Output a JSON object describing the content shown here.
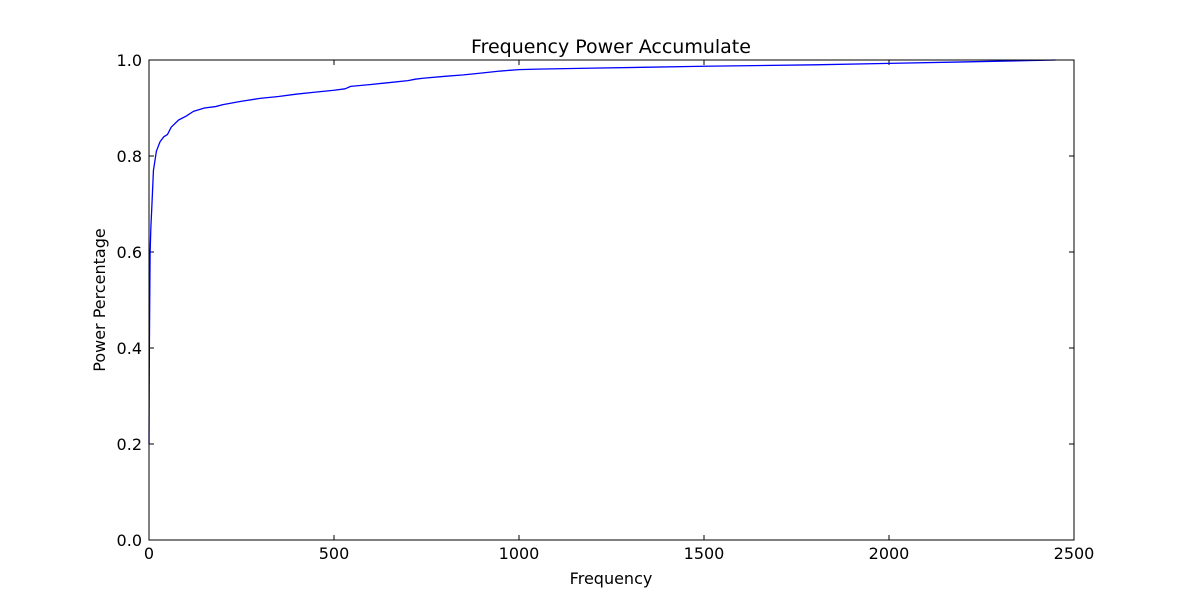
{
  "chart_data": {
    "type": "line",
    "title": "Frequency Power Accumulate",
    "xlabel": "Frequency",
    "ylabel": "Power Percentage",
    "xlim": [
      0,
      2500
    ],
    "ylim": [
      0.0,
      1.0
    ],
    "xticks": [
      0,
      500,
      1000,
      1500,
      2000,
      2500
    ],
    "xtick_labels": [
      "0",
      "500",
      "1000",
      "1500",
      "2000",
      "2500"
    ],
    "yticks": [
      0.0,
      0.2,
      0.4,
      0.6,
      0.8,
      1.0
    ],
    "ytick_labels": [
      "0.0",
      "0.2",
      "0.4",
      "0.6",
      "0.8",
      "1.0"
    ],
    "grid": false,
    "line_color": "#0000ff",
    "series": [
      {
        "x": [
          0,
          1,
          3,
          5,
          8,
          12,
          16,
          20,
          25,
          30,
          40,
          50,
          60,
          80,
          100,
          120,
          150,
          180,
          200,
          250,
          300,
          350,
          400,
          450,
          500,
          530,
          545,
          600,
          650,
          700,
          720,
          740,
          800,
          850,
          900,
          950,
          1000,
          1050,
          1200,
          1500,
          1800,
          2000,
          2200,
          2450
        ],
        "y": [
          0.2,
          0.4,
          0.6,
          0.65,
          0.7,
          0.77,
          0.79,
          0.81,
          0.82,
          0.83,
          0.84,
          0.845,
          0.86,
          0.875,
          0.883,
          0.893,
          0.9,
          0.903,
          0.907,
          0.914,
          0.92,
          0.924,
          0.929,
          0.933,
          0.937,
          0.94,
          0.945,
          0.949,
          0.953,
          0.957,
          0.96,
          0.962,
          0.966,
          0.969,
          0.973,
          0.977,
          0.98,
          0.981,
          0.983,
          0.987,
          0.99,
          0.993,
          0.996,
          1.0
        ]
      }
    ]
  }
}
